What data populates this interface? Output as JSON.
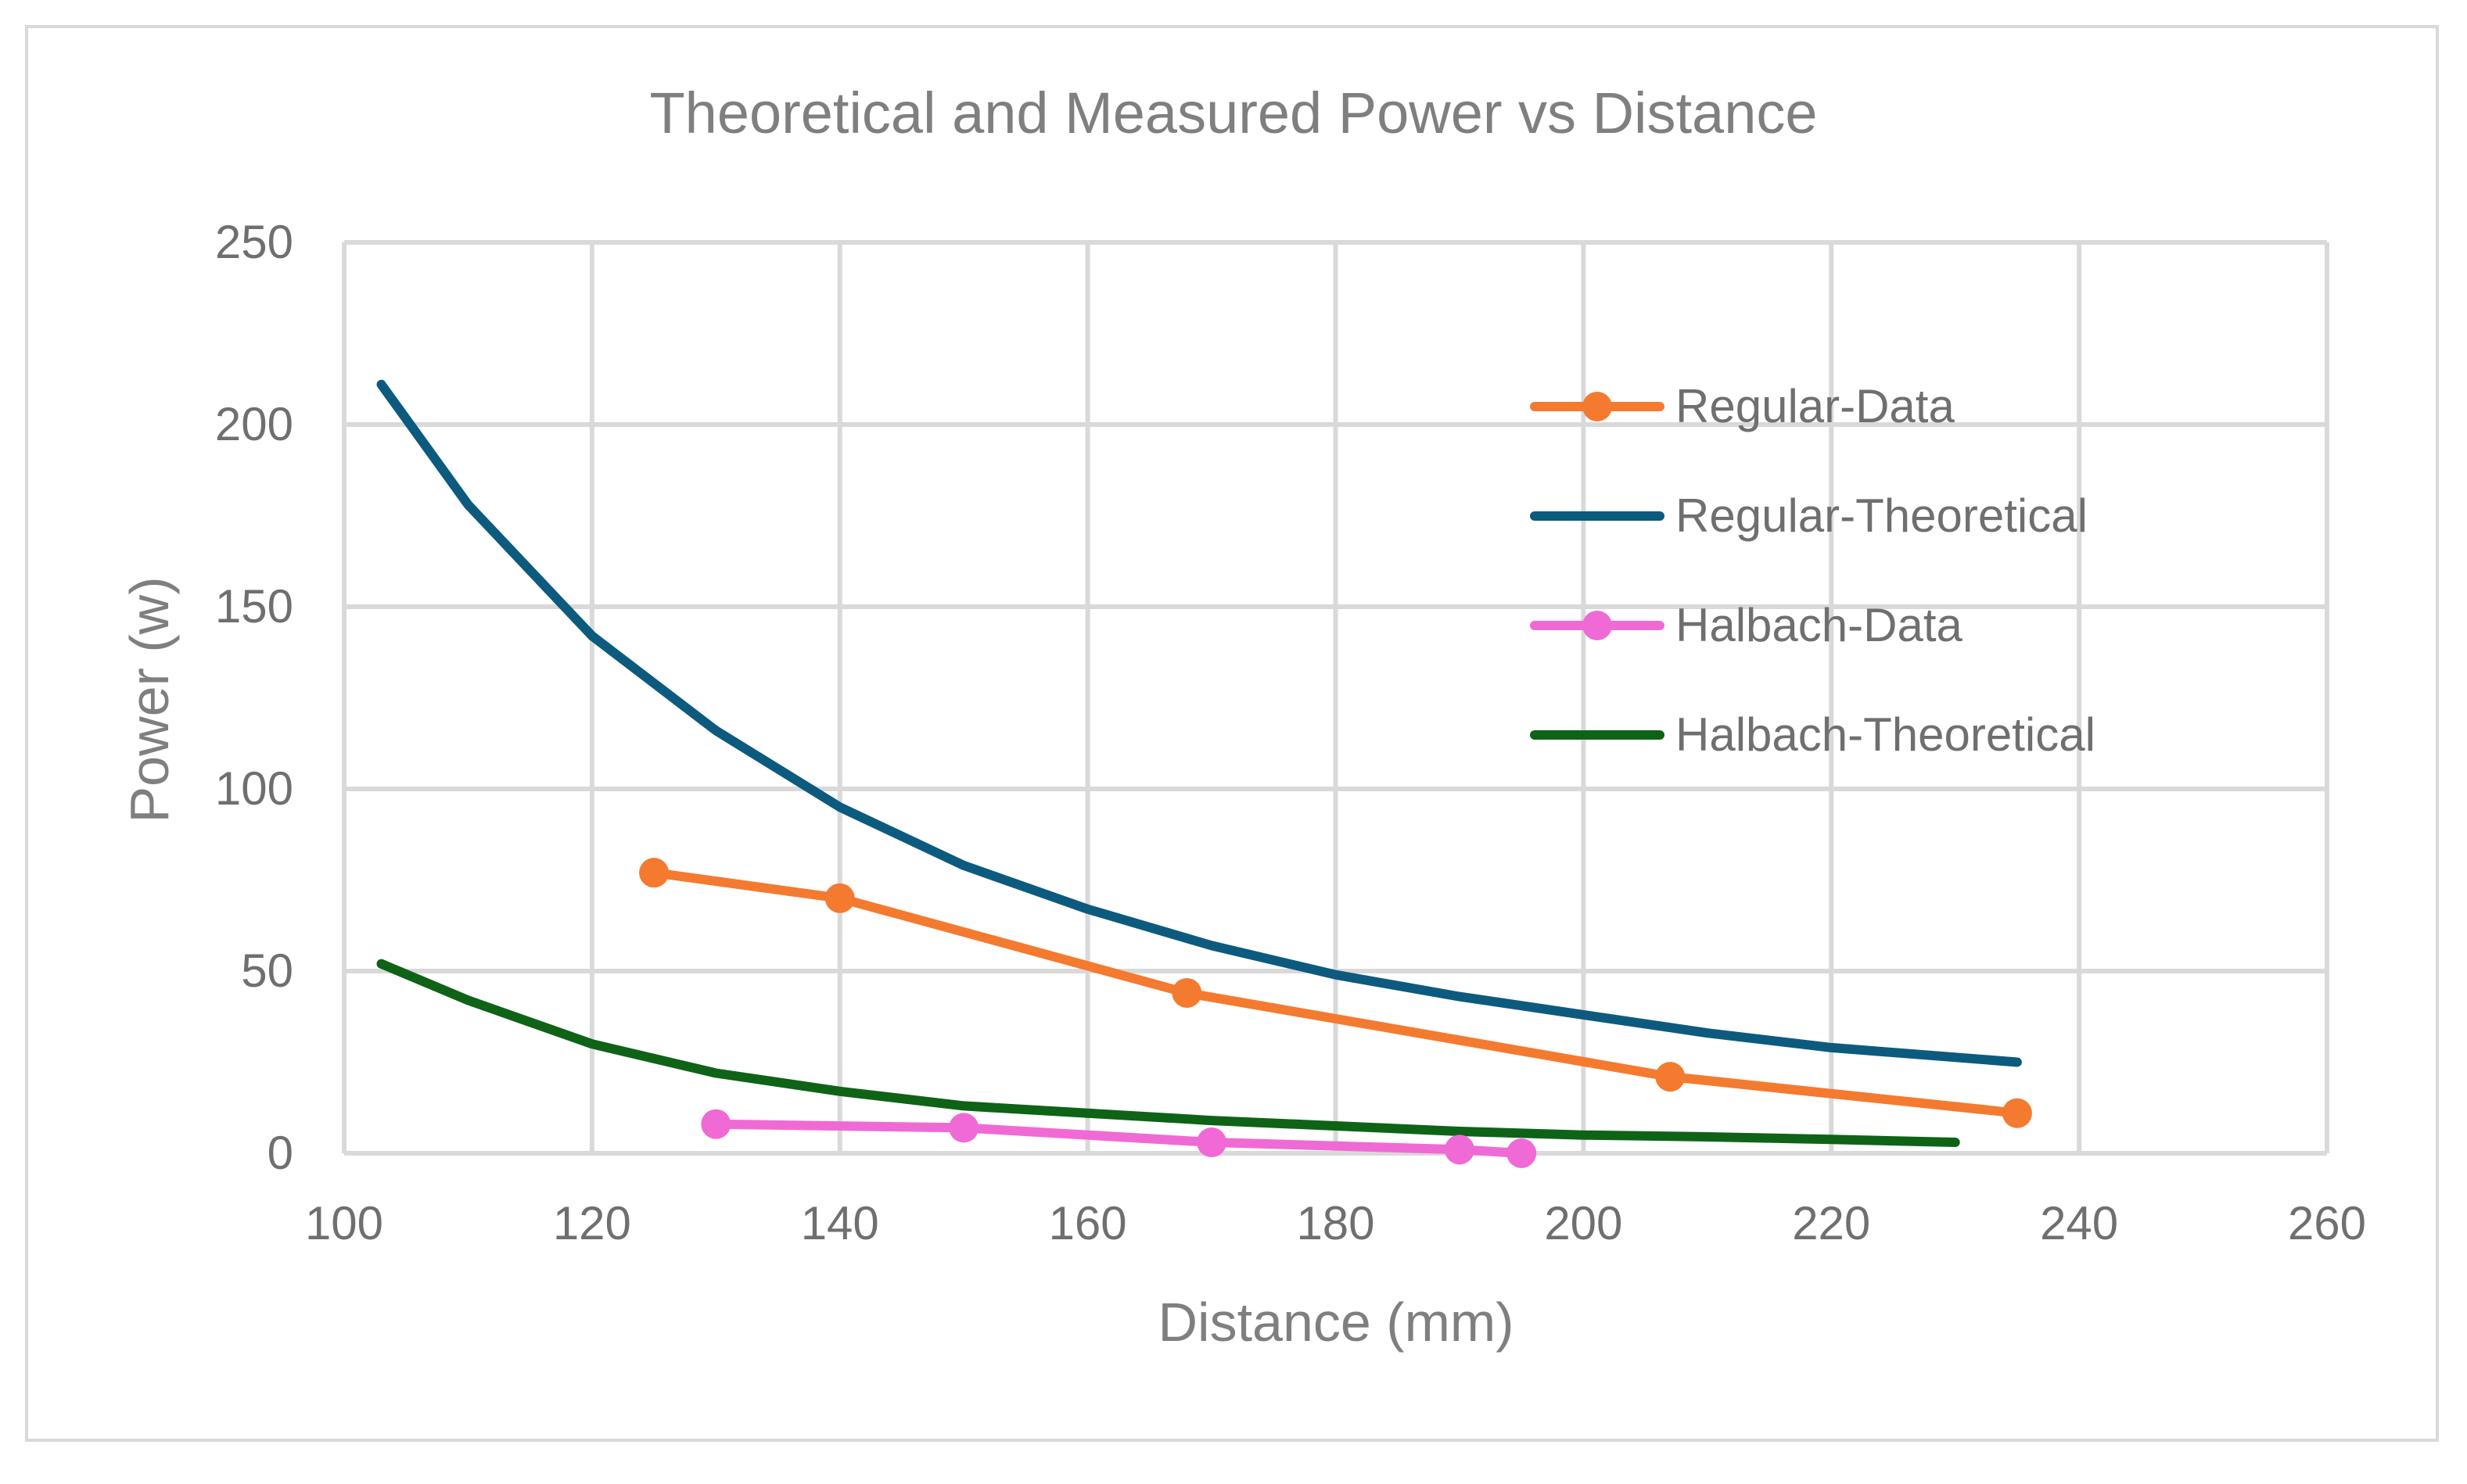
{
  "chart_data": {
    "type": "line",
    "title": "Theoretical and Measured Power vs Distance",
    "xlabel": "Distance (mm)",
    "ylabel": "Power (w)",
    "xlim": [
      100,
      260
    ],
    "ylim": [
      0,
      250
    ],
    "x_ticks": [
      100,
      120,
      140,
      160,
      180,
      200,
      220,
      240,
      260
    ],
    "y_ticks": [
      0,
      50,
      100,
      150,
      200,
      250
    ],
    "grid": true,
    "legend_position": "right",
    "series": [
      {
        "name": "Regular-Data",
        "color": "#f47a30",
        "markers": true,
        "points": [
          {
            "x": 125,
            "y": 77
          },
          {
            "x": 140,
            "y": 70
          },
          {
            "x": 168,
            "y": 44
          },
          {
            "x": 207,
            "y": 21
          },
          {
            "x": 235,
            "y": 11
          }
        ]
      },
      {
        "name": "Regular-Theoretical",
        "color": "#0d5a7f",
        "markers": false,
        "points": [
          {
            "x": 103,
            "y": 211
          },
          {
            "x": 110,
            "y": 178
          },
          {
            "x": 120,
            "y": 142
          },
          {
            "x": 130,
            "y": 116
          },
          {
            "x": 140,
            "y": 95
          },
          {
            "x": 150,
            "y": 79
          },
          {
            "x": 160,
            "y": 67
          },
          {
            "x": 170,
            "y": 57
          },
          {
            "x": 180,
            "y": 49
          },
          {
            "x": 190,
            "y": 43
          },
          {
            "x": 200,
            "y": 38
          },
          {
            "x": 210,
            "y": 33
          },
          {
            "x": 220,
            "y": 29
          },
          {
            "x": 235,
            "y": 25
          }
        ]
      },
      {
        "name": "Halbach-Data",
        "color": "#f06ad6",
        "markers": true,
        "points": [
          {
            "x": 130,
            "y": 8
          },
          {
            "x": 150,
            "y": 7
          },
          {
            "x": 170,
            "y": 3
          },
          {
            "x": 190,
            "y": 1
          },
          {
            "x": 195,
            "y": 0
          }
        ]
      },
      {
        "name": "Halbach-Theoretical",
        "color": "#0e6316",
        "markers": false,
        "points": [
          {
            "x": 103,
            "y": 52
          },
          {
            "x": 110,
            "y": 42
          },
          {
            "x": 120,
            "y": 30
          },
          {
            "x": 130,
            "y": 22
          },
          {
            "x": 140,
            "y": 17
          },
          {
            "x": 150,
            "y": 13
          },
          {
            "x": 160,
            "y": 11
          },
          {
            "x": 170,
            "y": 9
          },
          {
            "x": 180,
            "y": 7.5
          },
          {
            "x": 190,
            "y": 6
          },
          {
            "x": 200,
            "y": 5
          },
          {
            "x": 210,
            "y": 4.5
          },
          {
            "x": 220,
            "y": 3.8
          },
          {
            "x": 230,
            "y": 3
          }
        ]
      }
    ]
  }
}
